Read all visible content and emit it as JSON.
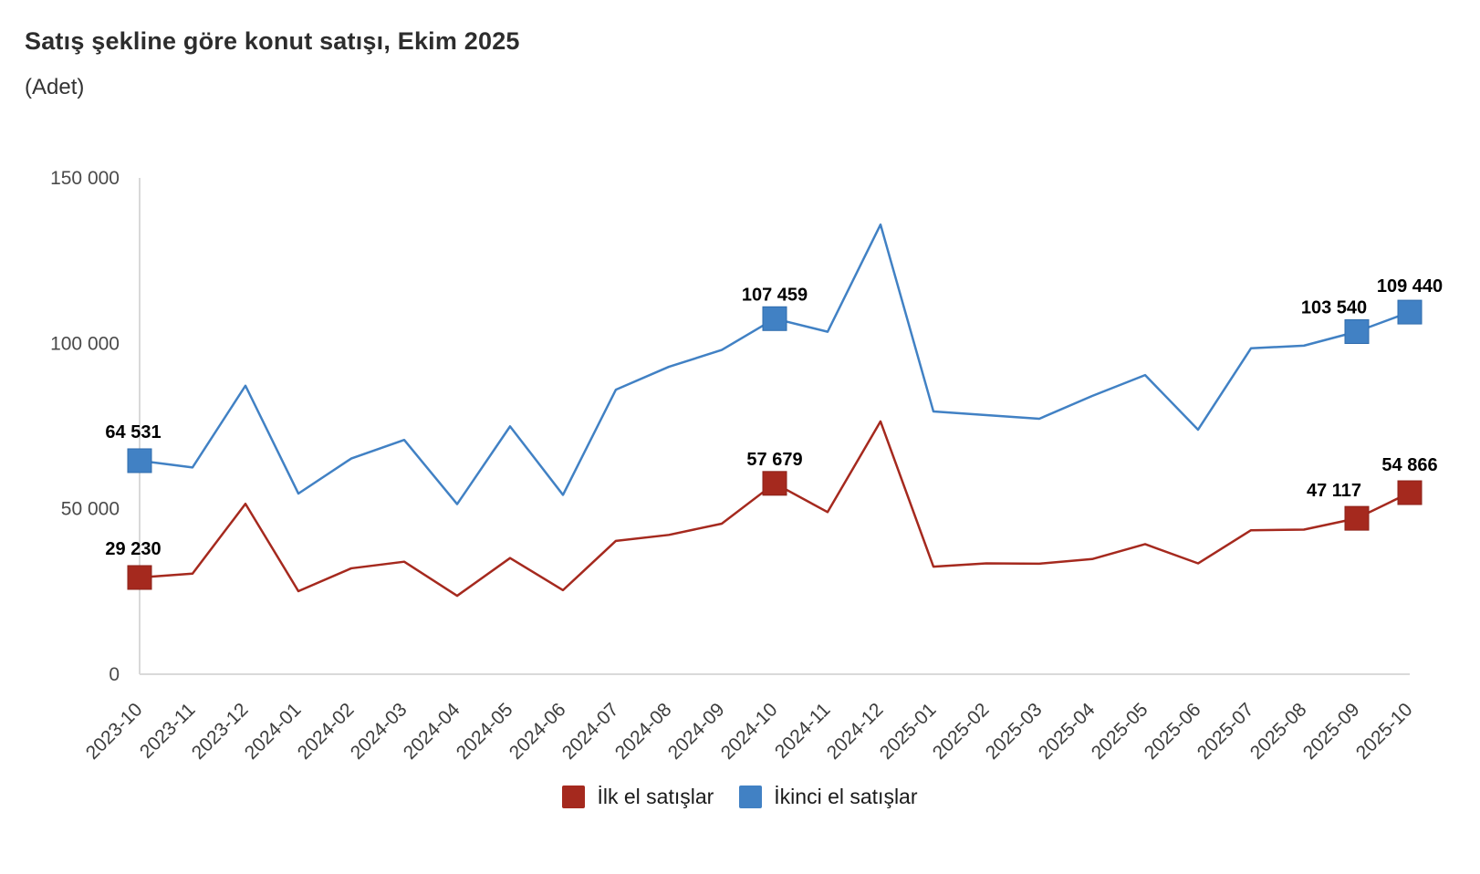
{
  "header": {
    "title": "Satış şekline göre konut satışı, Ekim 2025",
    "subtitle": "(Adet)"
  },
  "chart_data": {
    "type": "line",
    "title": "Satış şekline göre konut satışı, Ekim 2025",
    "unit_label": "(Adet)",
    "xlabel": "",
    "ylabel": "",
    "ylim": [
      0,
      150000
    ],
    "grid": false,
    "legend_position": "bottom",
    "axis_color": "#d9d9d9",
    "ytick_color": "#4a4a4a",
    "xtick_color": "#3d3d3d",
    "data_label_color": "#000000",
    "yticks": [
      {
        "value": 150000,
        "label": "150 000"
      },
      {
        "value": 100000,
        "label": "100 000"
      },
      {
        "value": 50000,
        "label": "50 000"
      },
      {
        "value": 0,
        "label": "0"
      }
    ],
    "categories": [
      "2023-10",
      "2023-11",
      "2023-12",
      "2024-01",
      "2024-02",
      "2024-03",
      "2024-04",
      "2024-05",
      "2024-06",
      "2024-07",
      "2024-08",
      "2024-09",
      "2024-10",
      "2024-11",
      "2024-12",
      "2025-01",
      "2025-02",
      "2025-03",
      "2025-04",
      "2025-05",
      "2025-06",
      "2025-07",
      "2025-08",
      "2025-09",
      "2025-10"
    ],
    "series": [
      {
        "name": "İlk el satışlar",
        "color": "#a5291e",
        "marker_stroke": "#8c2219",
        "values": [
          29230,
          30400,
          51500,
          25100,
          32000,
          34000,
          23700,
          35100,
          25400,
          40300,
          42100,
          45500,
          57679,
          49000,
          76400,
          32500,
          33500,
          33400,
          34800,
          39300,
          33500,
          43500,
          43700,
          47117,
          54866
        ],
        "labeled_points": [
          {
            "index": 0,
            "text": "29 230",
            "dx": -7,
            "dy": -25
          },
          {
            "index": 12,
            "text": "57 679",
            "dx": 0,
            "dy": -20
          },
          {
            "index": 23,
            "text": "47 117",
            "dx": -25,
            "dy": -24
          },
          {
            "index": 24,
            "text": "54 866",
            "dx": 0,
            "dy": -24
          }
        ]
      },
      {
        "name": "İkinci el satışlar",
        "color": "#4181c4",
        "marker_stroke": "#2f6cad",
        "values": [
          64531,
          62500,
          87200,
          54600,
          65200,
          70800,
          51400,
          74900,
          54200,
          86000,
          92900,
          98000,
          107459,
          103500,
          135900,
          79400,
          78300,
          77200,
          84100,
          90400,
          73900,
          98500,
          99300,
          103540,
          109440
        ],
        "labeled_points": [
          {
            "index": 0,
            "text": "64 531",
            "dx": -7,
            "dy": -25
          },
          {
            "index": 12,
            "text": "107 459",
            "dx": 0,
            "dy": -20
          },
          {
            "index": 23,
            "text": "103 540",
            "dx": -25,
            "dy": -20
          },
          {
            "index": 24,
            "text": "109 440",
            "dx": 0,
            "dy": -22
          }
        ]
      }
    ]
  }
}
